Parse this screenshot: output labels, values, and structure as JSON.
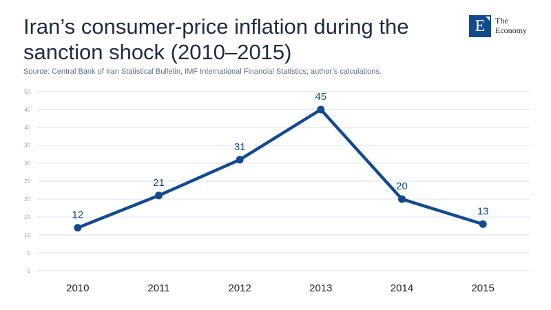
{
  "title": "Iran’s consumer-price inflation during the sanction shock (2010–2015)",
  "source": "Source: Central Bank of Iran Statistical Bulletin, IMF International Financial Statistics; author’s calculations.",
  "logo": {
    "letter": "E",
    "line1": "The",
    "line2": "Economy"
  },
  "colors": {
    "line": "#134a8e",
    "grid": "#dde1ea",
    "tick": "#9aa3b5",
    "title": "#1f2a44"
  },
  "chart_data": {
    "type": "line",
    "title": "Iran’s consumer-price inflation during the sanction shock (2010–2015)",
    "categories": [
      "2010",
      "2011",
      "2012",
      "2013",
      "2014",
      "2015"
    ],
    "values": [
      12,
      21,
      31,
      45,
      20,
      13
    ],
    "data_labels": [
      "12",
      "21",
      "31",
      "45",
      "20",
      "13"
    ],
    "yticks": [
      "0",
      "5",
      "10",
      "15",
      "20",
      "25",
      "30",
      "35",
      "40",
      "45",
      "50"
    ],
    "ylim": [
      0,
      50
    ],
    "grid": true,
    "legend": "none",
    "xlabel": "",
    "ylabel": ""
  }
}
